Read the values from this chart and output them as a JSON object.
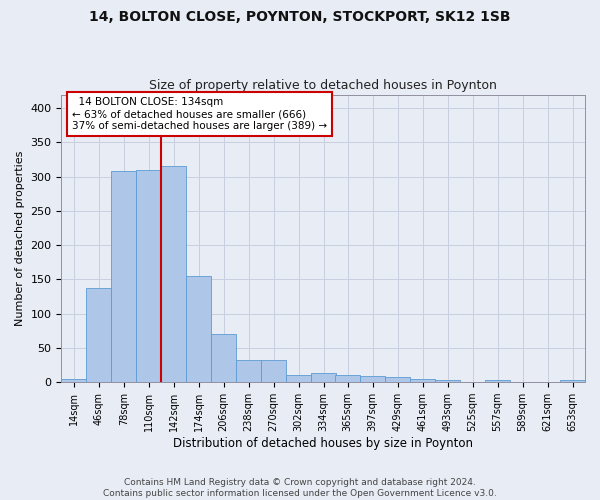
{
  "title1": "14, BOLTON CLOSE, POYNTON, STOCKPORT, SK12 1SB",
  "title2": "Size of property relative to detached houses in Poynton",
  "xlabel": "Distribution of detached houses by size in Poynton",
  "ylabel": "Number of detached properties",
  "footer1": "Contains HM Land Registry data © Crown copyright and database right 2024.",
  "footer2": "Contains public sector information licensed under the Open Government Licence v3.0.",
  "annotation_line1": "14 BOLTON CLOSE: 134sqm",
  "annotation_line2": "← 63% of detached houses are smaller (666)",
  "annotation_line3": "37% of semi-detached houses are larger (389) →",
  "bins": [
    14,
    46,
    78,
    110,
    142,
    174,
    206,
    238,
    270,
    302,
    334,
    365,
    397,
    429,
    461,
    493,
    525,
    557,
    589,
    621,
    653
  ],
  "counts": [
    4,
    137,
    308,
    310,
    315,
    155,
    70,
    32,
    32,
    11,
    13,
    11,
    9,
    7,
    4,
    3,
    0,
    3,
    0,
    0,
    3
  ],
  "bar_color": "#aec6e8",
  "bar_edge_color": "#5b9bd5",
  "vline_color": "#cc0000",
  "vline_x": 142,
  "ylim": [
    0,
    420
  ],
  "xlim_left": 14,
  "xlim_right": 685,
  "yticks": [
    0,
    50,
    100,
    150,
    200,
    250,
    300,
    350,
    400
  ],
  "annotation_box_color": "#cc0000",
  "grid_color": "#c8d0e0",
  "bg_color": "#e8edf5",
  "title1_fontsize": 10,
  "title2_fontsize": 9,
  "ylabel_fontsize": 8,
  "xlabel_fontsize": 8.5,
  "tick_fontsize": 7,
  "ann_fontsize": 7.5,
  "footer_fontsize": 6.5
}
